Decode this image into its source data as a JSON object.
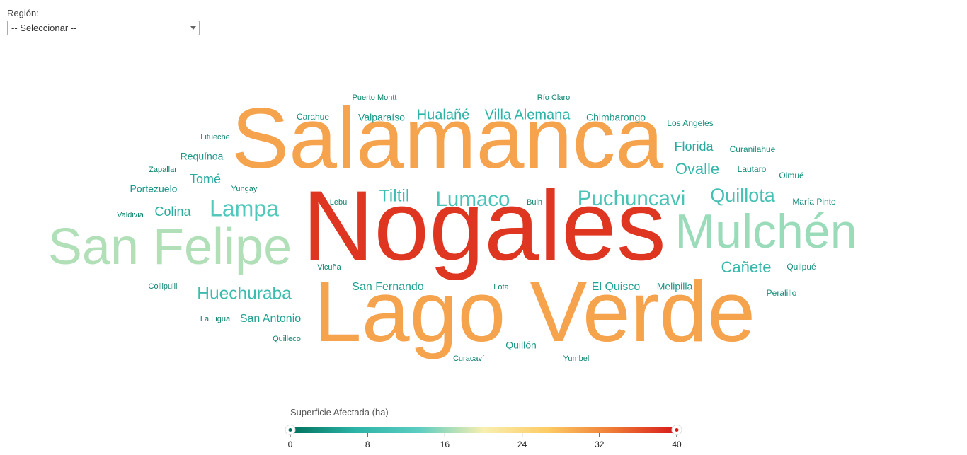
{
  "region": {
    "label": "Región:",
    "selected": "-- Seleccionar --"
  },
  "colors": {
    "scale": [
      "#00705a",
      "#2bb3a6",
      "#5ccdc1",
      "#f7efb0",
      "#fdcb64",
      "#ef7b35",
      "#d71919"
    ]
  },
  "chart_data": {
    "type": "wordcloud",
    "words": [
      {
        "text": "Nogales",
        "value": 38
      },
      {
        "text": "Salamanca",
        "value": 30
      },
      {
        "text": "Lago Verde",
        "value": 30
      },
      {
        "text": "San Felipe",
        "value": 17
      },
      {
        "text": "Mulchén",
        "value": 16
      },
      {
        "text": "Lampa",
        "value": 12
      },
      {
        "text": "Lumaco",
        "value": 11
      },
      {
        "text": "Puchuncavi",
        "value": 11
      },
      {
        "text": "Quillota",
        "value": 10
      },
      {
        "text": "Huechuraba",
        "value": 9
      },
      {
        "text": "Tiltil",
        "value": 9
      },
      {
        "text": "Ovalle",
        "value": 8
      },
      {
        "text": "Cañete",
        "value": 8
      },
      {
        "text": "Villa Alemana",
        "value": 7
      },
      {
        "text": "Hualañé",
        "value": 7
      },
      {
        "text": "Florida",
        "value": 6
      },
      {
        "text": "Tomé",
        "value": 6
      },
      {
        "text": "Colina",
        "value": 6
      },
      {
        "text": "San Fernando",
        "value": 5
      },
      {
        "text": "San Antonio",
        "value": 5
      },
      {
        "text": "El Quisco",
        "value": 5
      },
      {
        "text": "Melipilla",
        "value": 4
      },
      {
        "text": "Chimbarongo",
        "value": 4
      },
      {
        "text": "Valparaíso",
        "value": 4
      },
      {
        "text": "Requínoa",
        "value": 4
      },
      {
        "text": "Portezuelo",
        "value": 4
      },
      {
        "text": "Quillón",
        "value": 4
      },
      {
        "text": "Lautaro",
        "value": 3
      },
      {
        "text": "Curanilahue",
        "value": 3
      },
      {
        "text": "Quilpué",
        "value": 3
      },
      {
        "text": "María Pinto",
        "value": 3
      },
      {
        "text": "Peralillo",
        "value": 3
      },
      {
        "text": "Olmué",
        "value": 3
      },
      {
        "text": "Los Angeles",
        "value": 3
      },
      {
        "text": "Carahue",
        "value": 3
      },
      {
        "text": "Puerto Montt",
        "value": 2
      },
      {
        "text": "Río Claro",
        "value": 2
      },
      {
        "text": "Litueche",
        "value": 2
      },
      {
        "text": "Zapallar",
        "value": 2
      },
      {
        "text": "Yungay",
        "value": 2
      },
      {
        "text": "Valdivia",
        "value": 2
      },
      {
        "text": "Lebu",
        "value": 2
      },
      {
        "text": "Buin",
        "value": 2
      },
      {
        "text": "Vicuña",
        "value": 2
      },
      {
        "text": "Collipulli",
        "value": 2
      },
      {
        "text": "Lota",
        "value": 2
      },
      {
        "text": "La Ligua",
        "value": 2
      },
      {
        "text": "Quilleco",
        "value": 2
      },
      {
        "text": "Curacaví",
        "value": 2
      },
      {
        "text": "Yumbel",
        "value": 2
      }
    ],
    "legend": {
      "title": "Superficie Afectada (ha)",
      "min": 0,
      "max": 40,
      "ticks": [
        "0",
        "8",
        "16",
        "24",
        "32",
        "40"
      ]
    }
  }
}
